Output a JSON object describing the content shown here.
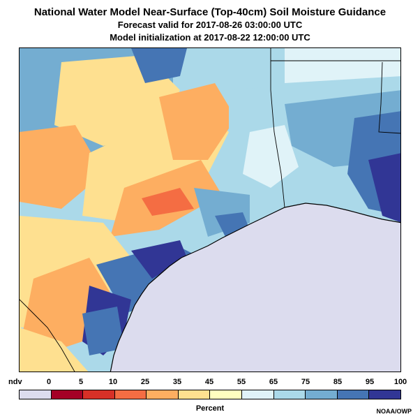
{
  "header": {
    "title": "National Water Model Near-Surface (Top-40cm) Soil Moisture Guidance",
    "forecast_valid": "Forecast valid for 2017-08-26 03:00:00 UTC",
    "model_init": "Model initialization at 2017-08-22 12:00:00 UTC"
  },
  "map": {
    "variable": "Near-surface soil moisture",
    "water_color": "#dcdcee",
    "coastline_color": "#000000"
  },
  "legend": {
    "ndv_label": "ndv",
    "tick_labels": [
      "0",
      "5",
      "10",
      "25",
      "35",
      "45",
      "55",
      "65",
      "75",
      "85",
      "95",
      "100"
    ],
    "colors": [
      "#dcdcee",
      "#a50026",
      "#d73027",
      "#f46d43",
      "#fdae61",
      "#fee090",
      "#ffffbf",
      "#e0f3f8",
      "#abd9e9",
      "#74add1",
      "#4575b4",
      "#313695"
    ],
    "units": "Percent"
  },
  "footer": {
    "credit": "NOAA/OWP"
  }
}
